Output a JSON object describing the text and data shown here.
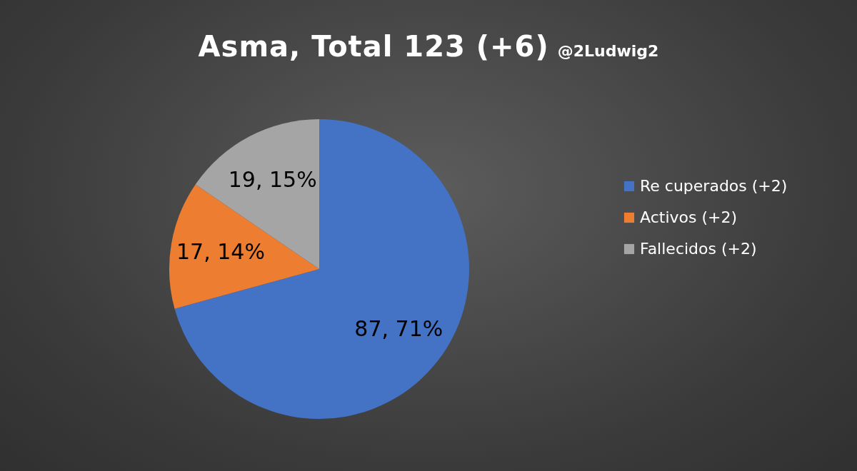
{
  "chart_data": {
    "type": "pie",
    "title": "Asma, Total 123 (+6)",
    "annotations": [
      "@2Ludwig2"
    ],
    "categories": [
      "Re cuperados (+2)",
      "Activos (+2)",
      "Fallecidos (+2)"
    ],
    "values": [
      87,
      17,
      19
    ],
    "colors": [
      "#4472c4",
      "#ed7d31",
      "#a5a5a5"
    ],
    "value_labels": [
      "87, 71%",
      "17, 14%",
      "19, 15%"
    ],
    "legend": "right"
  }
}
